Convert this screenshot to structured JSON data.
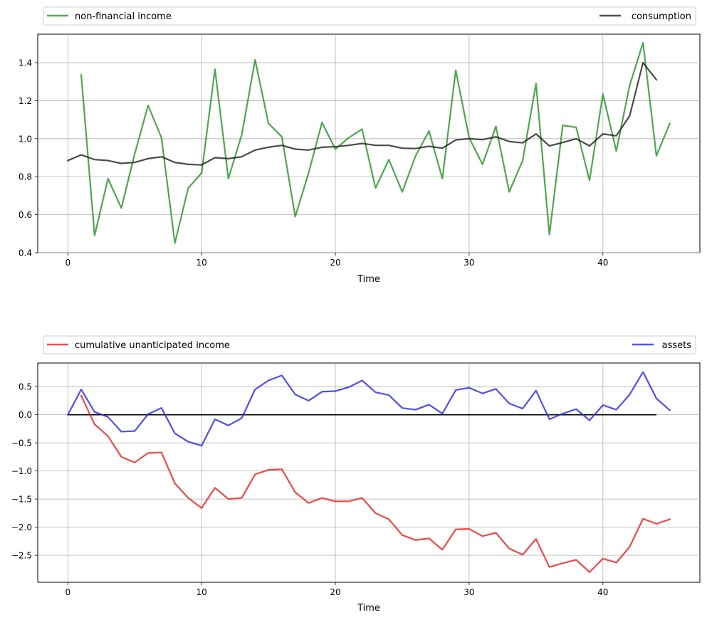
{
  "chart_data": [
    {
      "type": "line",
      "xlabel": "Time",
      "ylabel": "",
      "xlim": [
        -2.25,
        47.25
      ],
      "ylim": [
        0.4,
        1.55
      ],
      "xticks": [
        0,
        10,
        20,
        30,
        40
      ],
      "yticks": [
        0.4,
        0.6,
        0.8,
        1.0,
        1.2,
        1.4
      ],
      "xtick_labels": [
        "0",
        "10",
        "20",
        "30",
        "40"
      ],
      "ytick_labels": [
        "0.4",
        "0.6",
        "0.8",
        "1.0",
        "1.2",
        "1.4"
      ],
      "grid": true,
      "legend_placement": "top, above plot, expanded",
      "series": [
        {
          "name": "non-financial income",
          "color": "#2a922a",
          "x": [
            1,
            2,
            3,
            4,
            5,
            6,
            7,
            8,
            9,
            10,
            11,
            12,
            13,
            14,
            15,
            16,
            17,
            18,
            19,
            20,
            21,
            22,
            23,
            24,
            25,
            26,
            27,
            28,
            29,
            30,
            31,
            32,
            33,
            34,
            35,
            36,
            37,
            38,
            39,
            40,
            41,
            42,
            43,
            44,
            45
          ],
          "values": [
            1.335,
            0.49,
            0.79,
            0.635,
            0.92,
            1.175,
            1.005,
            0.45,
            0.74,
            0.82,
            1.365,
            0.79,
            1.02,
            1.415,
            1.08,
            1.01,
            0.59,
            0.82,
            1.085,
            0.945,
            1.005,
            1.05,
            0.74,
            0.89,
            0.72,
            0.91,
            1.04,
            0.79,
            1.36,
            1.005,
            0.865,
            1.065,
            0.72,
            0.885,
            1.29,
            0.495,
            1.07,
            1.06,
            0.78,
            1.235,
            0.935,
            1.28,
            1.505,
            0.91,
            1.08
          ]
        },
        {
          "name": "consumption",
          "color": "#222222",
          "x": [
            0,
            1,
            2,
            3,
            4,
            5,
            6,
            7,
            8,
            9,
            10,
            11,
            12,
            13,
            14,
            15,
            16,
            17,
            18,
            19,
            20,
            21,
            22,
            23,
            24,
            25,
            26,
            27,
            28,
            29,
            30,
            31,
            32,
            33,
            34,
            35,
            36,
            37,
            38,
            39,
            40,
            41,
            42,
            43,
            44
          ],
          "values": [
            0.885,
            0.915,
            0.89,
            0.885,
            0.87,
            0.875,
            0.895,
            0.905,
            0.875,
            0.865,
            0.862,
            0.9,
            0.895,
            0.905,
            0.94,
            0.955,
            0.965,
            0.945,
            0.94,
            0.955,
            0.958,
            0.965,
            0.975,
            0.965,
            0.965,
            0.95,
            0.948,
            0.96,
            0.95,
            0.993,
            1.0,
            0.995,
            1.01,
            0.985,
            0.978,
            1.025,
            0.962,
            0.98,
            1.0,
            0.962,
            1.025,
            1.015,
            1.12,
            1.4,
            1.31
          ]
        }
      ]
    },
    {
      "type": "line",
      "xlabel": "Time",
      "ylabel": "",
      "xlim": [
        -2.25,
        47.25
      ],
      "ylim": [
        -2.98,
        0.92
      ],
      "xticks": [
        0,
        10,
        20,
        30,
        40
      ],
      "yticks": [
        -2.5,
        -2.0,
        -1.5,
        -1.0,
        -0.5,
        0.0,
        0.5
      ],
      "xtick_labels": [
        "0",
        "10",
        "20",
        "30",
        "40"
      ],
      "ytick_labels": [
        "−2.5",
        "−2.0",
        "−1.5",
        "−1.0",
        "−0.5",
        "0.0",
        "0.5"
      ],
      "grid": true,
      "legend_placement": "top, above plot, expanded",
      "baseline": {
        "x": [
          0,
          44
        ],
        "y": 0.0,
        "color": "#000000"
      },
      "series": [
        {
          "name": "cumulative unanticipated income",
          "color": "#ee2020",
          "x": [
            1,
            2,
            3,
            4,
            5,
            6,
            7,
            8,
            9,
            10,
            11,
            12,
            13,
            14,
            15,
            16,
            17,
            18,
            19,
            20,
            21,
            22,
            23,
            24,
            25,
            26,
            27,
            28,
            29,
            30,
            31,
            32,
            33,
            34,
            35,
            36,
            37,
            38,
            39,
            40,
            41,
            42,
            43,
            44,
            45
          ],
          "values": [
            0.34,
            -0.17,
            -0.38,
            -0.75,
            -0.85,
            -0.68,
            -0.67,
            -1.22,
            -1.48,
            -1.66,
            -1.3,
            -1.5,
            -1.48,
            -1.06,
            -0.98,
            -0.97,
            -1.38,
            -1.57,
            -1.48,
            -1.54,
            -1.54,
            -1.48,
            -1.75,
            -1.86,
            -2.14,
            -2.23,
            -2.2,
            -2.4,
            -2.04,
            -2.03,
            -2.16,
            -2.1,
            -2.38,
            -2.49,
            -2.21,
            -2.71,
            -2.64,
            -2.58,
            -2.8,
            -2.56,
            -2.63,
            -2.35,
            -1.85,
            -1.94,
            -1.86
          ]
        },
        {
          "name": "assets",
          "color": "#2828ee",
          "x": [
            0,
            1,
            2,
            3,
            4,
            5,
            6,
            7,
            8,
            9,
            10,
            11,
            12,
            13,
            14,
            15,
            16,
            17,
            18,
            19,
            20,
            21,
            22,
            23,
            24,
            25,
            26,
            27,
            28,
            29,
            30,
            31,
            32,
            33,
            34,
            35,
            36,
            37,
            38,
            39,
            40,
            41,
            42,
            43,
            44,
            45
          ],
          "values": [
            0.0,
            0.45,
            0.05,
            -0.04,
            -0.3,
            -0.29,
            0.01,
            0.12,
            -0.33,
            -0.48,
            -0.55,
            -0.08,
            -0.19,
            -0.06,
            0.45,
            0.61,
            0.7,
            0.36,
            0.25,
            0.41,
            0.42,
            0.49,
            0.61,
            0.4,
            0.35,
            0.12,
            0.09,
            0.18,
            0.02,
            0.44,
            0.48,
            0.38,
            0.46,
            0.2,
            0.11,
            0.43,
            -0.08,
            0.02,
            0.1,
            -0.1,
            0.17,
            0.09,
            0.36,
            0.76,
            0.29,
            0.08
          ]
        }
      ]
    }
  ]
}
